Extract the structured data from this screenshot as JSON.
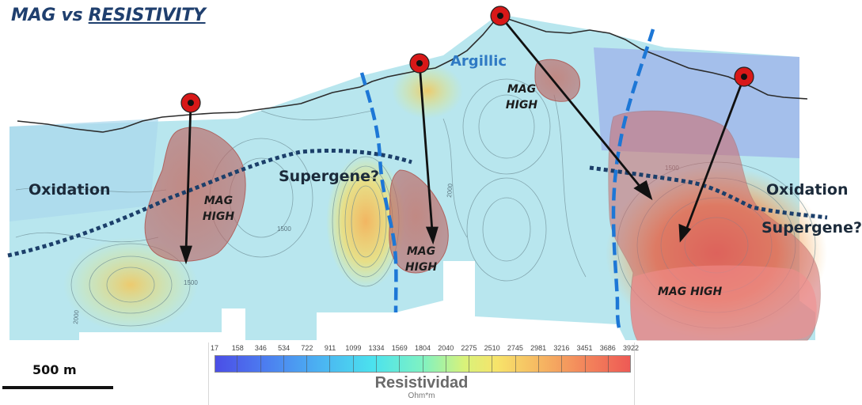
{
  "title": {
    "prefix": "MAG vs ",
    "emphasis": "RESISTIVITY"
  },
  "labels": {
    "oxidation_left": "Oxidation",
    "oxidation_right": "Oxidation",
    "supergene_center": "Supergene?",
    "supergene_right": "Supergene?",
    "argillic": "Argillic",
    "mag_high_1": "MAG HIGH",
    "mag_high_2": "MAG HIGH",
    "mag_high_3": "MAG HIGH",
    "mag_high_4": "MAG HIGH"
  },
  "contour_labels": [
    "1500",
    "2000",
    "1500",
    "2000",
    "1500"
  ],
  "scale_bar": {
    "label": "500 m"
  },
  "legend": {
    "ticks": [
      "17",
      "158",
      "346",
      "534",
      "722",
      "911",
      "1099",
      "1334",
      "1569",
      "1804",
      "2040",
      "2275",
      "2510",
      "2745",
      "2981",
      "3216",
      "3451",
      "3686",
      "3922"
    ],
    "title": "Resistividad",
    "unit": "Ohm*m"
  },
  "colors": {
    "title": "#1f3f6e",
    "fault_line": "#1d77d6",
    "contact_dotted": "#1c3f6a",
    "drill_hole": "#d81818",
    "mag_body": "#c0625f"
  }
}
